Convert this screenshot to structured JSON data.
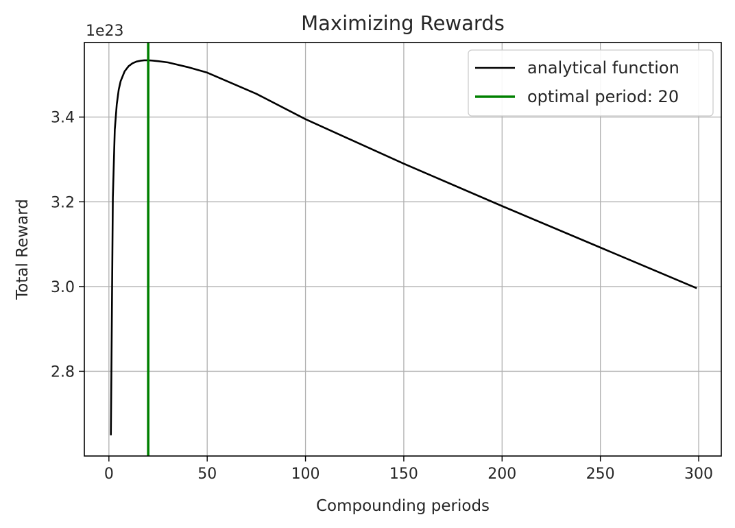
{
  "chart_data": {
    "type": "line",
    "title": "Maximizing Rewards",
    "xlabel": "Compounding periods",
    "ylabel": "Total Reward",
    "y_offset_label": "1e23",
    "y_scale_factor": 1e+23,
    "xlim": [
      -12.5,
      311.5
    ],
    "ylim": [
      2.6,
      3.576
    ],
    "xticks": [
      0,
      50,
      100,
      150,
      200,
      250,
      300
    ],
    "yticks": [
      2.8,
      3.0,
      3.2,
      3.4
    ],
    "ytick_labels": [
      "2.8",
      "3.0",
      "3.2",
      "3.4"
    ],
    "grid": true,
    "legend_position": "top-right",
    "series": [
      {
        "name": "analytical function",
        "color": "#000000",
        "x": [
          1,
          2,
          3,
          4,
          5,
          6,
          8,
          10,
          12,
          14,
          16,
          18,
          20,
          22,
          25,
          30,
          40,
          50,
          75,
          100,
          150,
          200,
          250,
          299
        ],
        "y": [
          2.649,
          3.21,
          3.37,
          3.43,
          3.465,
          3.485,
          3.508,
          3.52,
          3.527,
          3.531,
          3.533,
          3.534,
          3.534,
          3.5335,
          3.532,
          3.529,
          3.518,
          3.505,
          3.455,
          3.395,
          3.29,
          3.19,
          3.092,
          2.996
        ]
      }
    ],
    "vlines": [
      {
        "name": "optimal period: 20",
        "x": 20,
        "color": "#008000"
      }
    ]
  }
}
